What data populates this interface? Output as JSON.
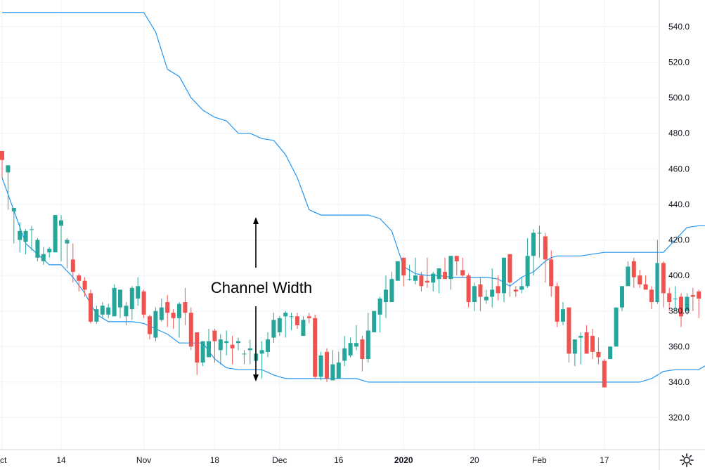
{
  "chart_data": {
    "type": "candlestick",
    "title": "",
    "xlabel": "",
    "ylabel": "",
    "ylim": [
      302,
      555
    ],
    "y_ticks": [
      "540.0",
      "520.0",
      "500.0",
      "480.0",
      "460.0",
      "440.0",
      "420.0",
      "400.0",
      "380.0",
      "360.0",
      "340.0",
      "320.0"
    ],
    "x_ticks": [
      {
        "label": "ct",
        "index": 0,
        "bold": false
      },
      {
        "label": "14",
        "index": 10,
        "bold": false
      },
      {
        "label": "Nov",
        "index": 24,
        "bold": false
      },
      {
        "label": "18",
        "index": 36,
        "bold": false
      },
      {
        "label": "Dec",
        "index": 47,
        "bold": false
      },
      {
        "label": "16",
        "index": 57,
        "bold": false
      },
      {
        "label": "2020",
        "index": 68,
        "bold": true
      },
      {
        "label": "20",
        "index": 80,
        "bold": false
      },
      {
        "label": "Feb",
        "index": 91,
        "bold": false
      },
      {
        "label": "17",
        "index": 102,
        "bold": false
      }
    ],
    "annotation": "Channel Width",
    "colors": {
      "up": "#26a69a",
      "down": "#ef5350",
      "channel": "#2196f3",
      "arrow": "#000000",
      "grid": "#f0f3fa",
      "axis": "#d1d4dc"
    },
    "candles": [
      [
        470,
        465,
        470,
        455
      ],
      [
        458,
        462,
        460,
        437
      ],
      [
        436,
        438,
        438,
        418
      ],
      [
        420,
        425,
        430,
        413
      ],
      [
        419,
        425,
        426,
        412
      ],
      [
        426,
        426,
        428,
        414
      ],
      [
        410,
        420,
        421,
        408
      ],
      [
        408,
        412,
        416,
        406
      ],
      [
        413,
        415,
        416,
        410
      ],
      [
        413,
        434,
        434,
        413
      ],
      [
        428,
        431,
        434,
        408
      ],
      [
        418,
        420,
        421,
        404
      ],
      [
        409,
        402,
        418,
        396
      ],
      [
        400,
        397,
        401,
        391
      ],
      [
        397,
        392,
        399,
        388
      ],
      [
        390,
        374,
        392,
        373
      ],
      [
        374,
        381,
        383,
        373
      ],
      [
        378,
        383,
        385,
        376
      ],
      [
        378,
        382,
        384,
        376
      ],
      [
        377,
        393,
        395,
        377
      ],
      [
        382,
        392,
        392,
        376
      ],
      [
        377,
        383,
        385,
        372
      ],
      [
        381,
        393,
        394,
        375
      ],
      [
        387,
        394,
        399,
        383
      ],
      [
        391,
        378,
        392,
        376
      ],
      [
        377,
        367,
        378,
        364
      ],
      [
        365,
        380,
        382,
        363
      ],
      [
        375,
        382,
        387,
        374
      ],
      [
        385,
        379,
        389,
        371
      ],
      [
        379,
        376,
        381,
        370
      ],
      [
        376,
        384,
        385,
        365
      ],
      [
        385,
        379,
        393,
        372
      ],
      [
        379,
        360,
        382,
        358
      ],
      [
        368,
        351,
        368,
        344
      ],
      [
        351,
        363,
        363,
        349
      ],
      [
        354,
        363,
        370,
        354
      ],
      [
        369,
        363,
        370,
        351
      ],
      [
        358,
        364,
        367,
        350
      ],
      [
        362,
        363,
        369,
        355
      ],
      [
        361,
        359,
        366,
        350
      ],
      [
        362,
        363,
        365,
        358
      ],
      [
        356,
        356,
        358,
        350
      ],
      [
        358,
        359,
        364,
        350
      ],
      [
        352,
        356,
        361,
        348
      ],
      [
        356,
        358,
        363,
        342
      ],
      [
        357,
        364,
        368,
        354
      ],
      [
        365,
        375,
        379,
        362
      ],
      [
        368,
        376,
        377,
        366
      ],
      [
        377,
        379,
        380,
        365
      ],
      [
        377,
        377,
        379,
        369
      ],
      [
        377,
        372,
        379,
        370
      ],
      [
        366,
        375,
        377,
        366
      ],
      [
        377,
        376,
        379,
        373
      ],
      [
        376,
        343,
        378,
        342
      ],
      [
        343,
        355,
        357,
        341
      ],
      [
        357,
        342,
        359,
        340
      ],
      [
        341,
        350,
        358,
        341
      ],
      [
        342,
        351,
        357,
        349
      ],
      [
        352,
        359,
        366,
        349
      ],
      [
        355,
        362,
        365,
        354
      ],
      [
        360,
        362,
        372,
        358
      ],
      [
        364,
        353,
        366,
        346
      ],
      [
        353,
        369,
        379,
        351
      ],
      [
        368,
        380,
        380,
        368
      ],
      [
        378,
        387,
        388,
        368
      ],
      [
        385,
        392,
        400,
        376
      ],
      [
        385,
        398,
        402,
        387
      ],
      [
        397,
        408,
        408,
        398
      ],
      [
        410,
        400,
        410,
        394
      ],
      [
        398,
        398,
        406,
        397
      ],
      [
        397,
        400,
        410,
        395
      ],
      [
        400,
        394,
        402,
        391
      ],
      [
        397,
        396,
        410,
        393
      ],
      [
        396,
        401,
        402,
        391
      ],
      [
        398,
        404,
        404,
        390
      ],
      [
        402,
        398,
        410,
        398
      ],
      [
        398,
        411,
        411,
        392
      ],
      [
        411,
        408,
        409,
        400
      ],
      [
        403,
        400,
        410,
        399
      ],
      [
        400,
        385,
        401,
        382
      ],
      [
        385,
        394,
        396,
        380
      ],
      [
        395,
        388,
        399,
        380
      ],
      [
        386,
        388,
        392,
        384
      ],
      [
        388,
        392,
        404,
        382
      ],
      [
        394,
        390,
        400,
        386
      ],
      [
        390,
        410,
        410,
        385
      ],
      [
        412,
        396,
        412,
        388
      ],
      [
        392,
        391,
        394,
        388
      ],
      [
        392,
        394,
        399,
        390
      ],
      [
        394,
        411,
        421,
        393
      ],
      [
        411,
        424,
        426,
        400
      ],
      [
        424,
        424,
        428,
        410
      ],
      [
        422,
        409,
        424,
        396
      ],
      [
        409,
        394,
        414,
        388
      ],
      [
        394,
        374,
        396,
        371
      ],
      [
        374,
        381,
        385,
        372
      ],
      [
        382,
        356,
        382,
        351
      ],
      [
        356,
        364,
        364,
        349
      ],
      [
        365,
        366,
        368,
        350
      ],
      [
        368,
        356,
        372,
        356
      ],
      [
        366,
        357,
        370,
        353
      ],
      [
        357,
        354,
        365,
        350
      ],
      [
        352,
        337,
        353,
        347
      ],
      [
        353,
        360,
        354,
        358
      ],
      [
        360,
        382,
        382,
        360
      ],
      [
        382,
        394,
        394,
        380
      ],
      [
        394,
        405,
        408,
        394
      ],
      [
        408,
        399,
        410,
        393
      ],
      [
        400,
        395,
        403,
        393
      ],
      [
        395,
        392,
        400,
        393
      ],
      [
        392,
        385,
        394,
        381
      ],
      [
        385,
        407,
        420,
        384
      ],
      [
        407,
        390,
        408,
        382
      ],
      [
        390,
        385,
        393,
        380
      ],
      [
        387,
        387,
        394,
        380
      ],
      [
        388,
        377,
        390,
        371
      ],
      [
        380,
        388,
        390,
        378
      ],
      [
        389,
        388,
        393,
        380
      ],
      [
        391,
        387,
        392,
        376
      ]
    ],
    "upper_channel": [
      [
        0,
        548
      ],
      [
        24,
        548
      ],
      [
        26,
        537
      ],
      [
        28,
        516
      ],
      [
        30,
        512
      ],
      [
        32,
        500
      ],
      [
        34,
        493
      ],
      [
        36,
        489
      ],
      [
        38,
        487
      ],
      [
        40,
        480
      ],
      [
        42,
        480
      ],
      [
        44,
        477
      ],
      [
        46,
        476
      ],
      [
        48,
        468
      ],
      [
        50,
        455
      ],
      [
        52,
        437
      ],
      [
        54,
        434
      ],
      [
        56,
        434
      ],
      [
        58,
        434
      ],
      [
        60,
        434
      ],
      [
        62,
        434
      ],
      [
        64,
        432
      ],
      [
        66,
        425
      ],
      [
        68,
        405
      ],
      [
        70,
        401
      ],
      [
        72,
        400
      ],
      [
        74,
        400
      ],
      [
        76,
        399
      ],
      [
        78,
        399
      ],
      [
        80,
        399
      ],
      [
        82,
        399
      ],
      [
        84,
        398
      ],
      [
        86,
        394
      ],
      [
        88,
        399
      ],
      [
        90,
        402
      ],
      [
        92,
        408
      ],
      [
        93,
        410
      ],
      [
        94,
        411
      ],
      [
        98,
        411
      ],
      [
        100,
        412
      ],
      [
        102,
        413
      ],
      [
        112,
        413
      ],
      [
        114,
        420
      ],
      [
        116,
        427
      ],
      [
        118,
        428
      ],
      [
        140,
        428
      ]
    ],
    "lower_channel": [
      [
        0,
        455
      ],
      [
        4,
        418
      ],
      [
        6,
        412
      ],
      [
        8,
        406
      ],
      [
        10,
        406
      ],
      [
        12,
        399
      ],
      [
        14,
        390
      ],
      [
        16,
        378
      ],
      [
        18,
        374
      ],
      [
        22,
        374
      ],
      [
        24,
        373
      ],
      [
        26,
        370
      ],
      [
        28,
        367
      ],
      [
        30,
        362
      ],
      [
        34,
        362
      ],
      [
        36,
        353
      ],
      [
        38,
        348
      ],
      [
        40,
        347
      ],
      [
        44,
        347
      ],
      [
        46,
        344
      ],
      [
        48,
        342
      ],
      [
        60,
        342
      ],
      [
        62,
        340
      ],
      [
        64,
        340
      ],
      [
        108,
        340
      ],
      [
        110,
        342
      ],
      [
        112,
        346
      ],
      [
        114,
        347
      ],
      [
        116,
        347
      ],
      [
        118,
        347
      ],
      [
        120,
        351
      ],
      [
        122,
        351
      ],
      [
        124,
        346
      ],
      [
        140,
        346
      ]
    ]
  }
}
